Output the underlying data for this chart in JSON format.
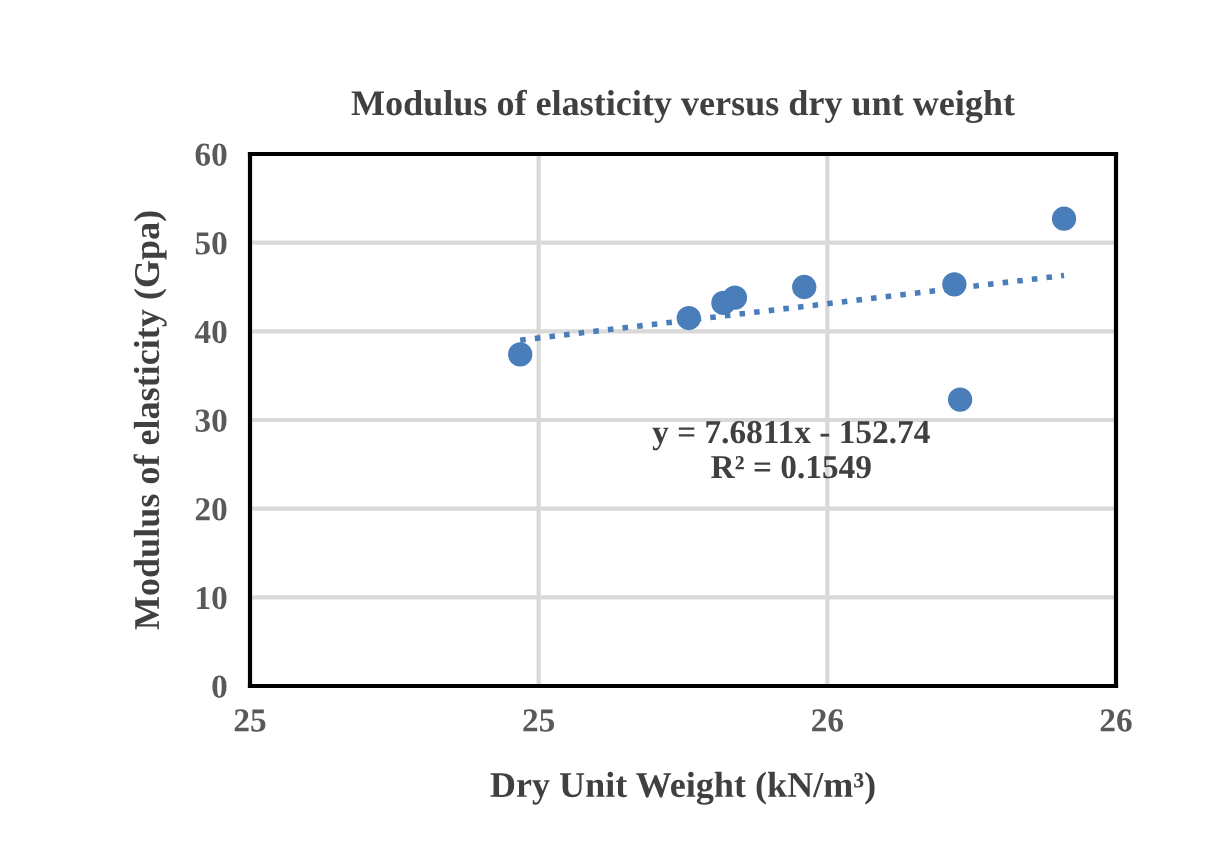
{
  "chart_data": {
    "type": "scatter",
    "title": "Modulus of elasticity versus dry unt weight",
    "xlabel": "Dry Unit Weight (kN/m³)",
    "ylabel": "Modulus of elasticity (Gpa)",
    "series": [
      {
        "color": "#4a7ebb",
        "x": [
          24.968,
          25.26,
          25.32,
          25.34,
          25.46,
          25.72,
          25.73,
          25.91
        ],
        "values": [
          37.4,
          41.5,
          43.2,
          43.8,
          45.0,
          45.3,
          32.3,
          52.7
        ],
        "marker": "circle"
      },
      {
        "type": "line",
        "color": "#4a7ebb",
        "x": [
          24.968,
          25.91
        ],
        "values": [
          39.0,
          46.3
        ],
        "line_style": "dotted",
        "marker": "none"
      }
    ],
    "annotations": [
      "y = 7.6811x - 152.74\nR² = 0.1549"
    ],
    "xlim": [
      24.5,
      26.0
    ],
    "xticks": [
      {
        "value": 24.5,
        "label": "25"
      },
      {
        "value": 25.0,
        "label": "25"
      },
      {
        "value": 25.5,
        "label": "26"
      },
      {
        "value": 26.0,
        "label": "26"
      }
    ],
    "ylim": [
      0,
      60
    ],
    "yticks": [
      0,
      10,
      20,
      30,
      40,
      50,
      60
    ],
    "grid": true,
    "legend": false
  }
}
